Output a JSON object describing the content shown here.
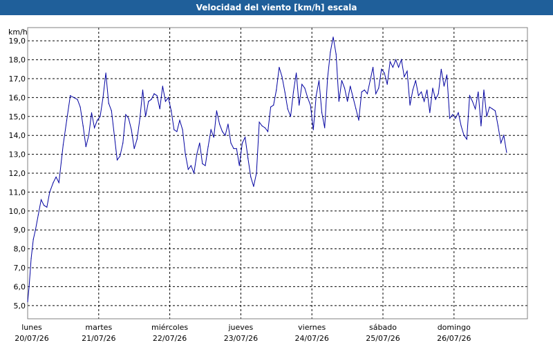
{
  "window": {
    "title": "Velocidad del viento [km/h] escala"
  },
  "chart_data": {
    "type": "line",
    "title": "Velocidad del viento [km/h] escala",
    "ylabel": "km/h",
    "ylim": [
      4.3,
      19.7
    ],
    "yticks": [
      "5,0",
      "6,0",
      "7,0",
      "8,0",
      "9,0",
      "10,0",
      "11,0",
      "12,0",
      "13,0",
      "14,0",
      "15,0",
      "16,0",
      "17,0",
      "18,0",
      "19,0"
    ],
    "xticks": [
      {
        "day": "lunes",
        "date": "20/07/26"
      },
      {
        "day": "martes",
        "date": "21/07/26"
      },
      {
        "day": "miércoles",
        "date": "22/07/26"
      },
      {
        "day": "jueves",
        "date": "23/07/26"
      },
      {
        "day": "viernes",
        "date": "24/07/26"
      },
      {
        "day": "sábado",
        "date": "25/07/26"
      },
      {
        "day": "domingo",
        "date": "26/07/26"
      }
    ],
    "grid": true,
    "line_color": "#0000a0",
    "series": [
      {
        "x_unit": "days since lunes 20/07/26",
        "points": [
          [
            0.0,
            5.2
          ],
          [
            0.02,
            6.0
          ],
          [
            0.05,
            7.5
          ],
          [
            0.08,
            8.5
          ],
          [
            0.11,
            9.0
          ],
          [
            0.15,
            9.8
          ],
          [
            0.19,
            10.6
          ],
          [
            0.23,
            10.3
          ],
          [
            0.27,
            10.2
          ],
          [
            0.31,
            11.0
          ],
          [
            0.36,
            11.5
          ],
          [
            0.4,
            11.8
          ],
          [
            0.44,
            11.5
          ],
          [
            0.5,
            13.5
          ],
          [
            0.55,
            14.8
          ],
          [
            0.6,
            16.1
          ],
          [
            0.65,
            16.0
          ],
          [
            0.7,
            15.9
          ],
          [
            0.74,
            15.5
          ],
          [
            0.78,
            14.5
          ],
          [
            0.82,
            13.4
          ],
          [
            0.86,
            14.0
          ],
          [
            0.9,
            15.2
          ],
          [
            0.94,
            14.4
          ],
          [
            0.98,
            14.8
          ],
          [
            1.02,
            15.0
          ],
          [
            1.06,
            16.0
          ],
          [
            1.1,
            17.3
          ],
          [
            1.14,
            15.7
          ],
          [
            1.18,
            15.3
          ],
          [
            1.22,
            14.0
          ],
          [
            1.26,
            12.7
          ],
          [
            1.3,
            12.9
          ],
          [
            1.34,
            13.6
          ],
          [
            1.38,
            15.1
          ],
          [
            1.42,
            14.9
          ],
          [
            1.46,
            14.3
          ],
          [
            1.5,
            13.3
          ],
          [
            1.54,
            13.8
          ],
          [
            1.58,
            14.9
          ],
          [
            1.62,
            16.4
          ],
          [
            1.66,
            15.0
          ],
          [
            1.7,
            15.8
          ],
          [
            1.74,
            15.9
          ],
          [
            1.78,
            16.2
          ],
          [
            1.82,
            16.1
          ],
          [
            1.86,
            15.4
          ],
          [
            1.9,
            16.6
          ],
          [
            1.94,
            15.8
          ],
          [
            1.98,
            16.0
          ],
          [
            2.02,
            15.3
          ],
          [
            2.06,
            14.3
          ],
          [
            2.1,
            14.2
          ],
          [
            2.14,
            14.8
          ],
          [
            2.18,
            14.3
          ],
          [
            2.22,
            13.0
          ],
          [
            2.26,
            12.2
          ],
          [
            2.3,
            12.4
          ],
          [
            2.34,
            12.0
          ],
          [
            2.38,
            13.0
          ],
          [
            2.42,
            13.6
          ],
          [
            2.46,
            12.5
          ],
          [
            2.5,
            12.4
          ],
          [
            2.54,
            13.4
          ],
          [
            2.58,
            14.3
          ],
          [
            2.62,
            13.9
          ],
          [
            2.66,
            15.3
          ],
          [
            2.7,
            14.6
          ],
          [
            2.74,
            14.2
          ],
          [
            2.78,
            14.0
          ],
          [
            2.82,
            14.6
          ],
          [
            2.86,
            13.6
          ],
          [
            2.9,
            13.3
          ],
          [
            2.94,
            13.3
          ],
          [
            2.98,
            12.4
          ],
          [
            3.02,
            13.6
          ],
          [
            3.06,
            13.9
          ],
          [
            3.1,
            12.8
          ],
          [
            3.14,
            11.8
          ],
          [
            3.18,
            11.3
          ],
          [
            3.22,
            12.0
          ],
          [
            3.26,
            14.7
          ],
          [
            3.3,
            14.5
          ],
          [
            3.34,
            14.4
          ],
          [
            3.38,
            14.2
          ],
          [
            3.42,
            15.5
          ],
          [
            3.46,
            15.6
          ],
          [
            3.5,
            16.4
          ],
          [
            3.54,
            17.6
          ],
          [
            3.58,
            17.1
          ],
          [
            3.62,
            16.3
          ],
          [
            3.66,
            15.4
          ],
          [
            3.7,
            15.0
          ],
          [
            3.74,
            16.3
          ],
          [
            3.78,
            17.3
          ],
          [
            3.82,
            15.6
          ],
          [
            3.86,
            16.7
          ],
          [
            3.9,
            16.5
          ],
          [
            3.94,
            16.0
          ],
          [
            3.98,
            15.6
          ],
          [
            4.02,
            14.3
          ],
          [
            4.06,
            16.1
          ],
          [
            4.1,
            16.9
          ],
          [
            4.14,
            15.2
          ],
          [
            4.18,
            14.4
          ],
          [
            4.22,
            17.0
          ],
          [
            4.26,
            18.4
          ],
          [
            4.3,
            19.2
          ],
          [
            4.34,
            18.3
          ],
          [
            4.38,
            15.8
          ],
          [
            4.42,
            16.9
          ],
          [
            4.46,
            16.5
          ],
          [
            4.5,
            15.8
          ],
          [
            4.54,
            16.6
          ],
          [
            4.58,
            16.0
          ],
          [
            4.62,
            15.4
          ],
          [
            4.66,
            14.8
          ],
          [
            4.7,
            16.3
          ],
          [
            4.74,
            16.4
          ],
          [
            4.78,
            16.2
          ],
          [
            4.82,
            16.9
          ],
          [
            4.86,
            17.6
          ],
          [
            4.9,
            16.2
          ],
          [
            4.94,
            16.5
          ],
          [
            4.98,
            17.5
          ],
          [
            5.02,
            17.3
          ],
          [
            5.06,
            16.7
          ],
          [
            5.1,
            17.9
          ],
          [
            5.14,
            17.6
          ],
          [
            5.18,
            18.0
          ],
          [
            5.22,
            17.6
          ],
          [
            5.26,
            18.0
          ],
          [
            5.3,
            17.1
          ],
          [
            5.34,
            17.4
          ],
          [
            5.38,
            15.6
          ],
          [
            5.42,
            16.4
          ],
          [
            5.46,
            16.9
          ],
          [
            5.5,
            16.1
          ],
          [
            5.54,
            16.3
          ],
          [
            5.58,
            15.8
          ],
          [
            5.62,
            16.4
          ],
          [
            5.66,
            15.2
          ],
          [
            5.7,
            16.5
          ],
          [
            5.74,
            15.9
          ],
          [
            5.78,
            16.2
          ],
          [
            5.82,
            17.5
          ],
          [
            5.86,
            16.6
          ],
          [
            5.9,
            17.2
          ],
          [
            5.94,
            14.9
          ],
          [
            5.98,
            15.1
          ],
          [
            6.02,
            14.9
          ],
          [
            6.06,
            15.2
          ],
          [
            6.1,
            14.5
          ],
          [
            6.14,
            14.0
          ],
          [
            6.18,
            13.8
          ],
          [
            6.22,
            16.1
          ],
          [
            6.26,
            15.8
          ],
          [
            6.3,
            15.4
          ],
          [
            6.34,
            16.3
          ],
          [
            6.38,
            14.5
          ],
          [
            6.42,
            16.4
          ],
          [
            6.46,
            15.0
          ],
          [
            6.5,
            15.5
          ],
          [
            6.54,
            15.4
          ],
          [
            6.58,
            15.3
          ],
          [
            6.62,
            14.5
          ],
          [
            6.66,
            13.6
          ],
          [
            6.7,
            14.0
          ],
          [
            6.74,
            13.1
          ]
        ]
      }
    ]
  }
}
